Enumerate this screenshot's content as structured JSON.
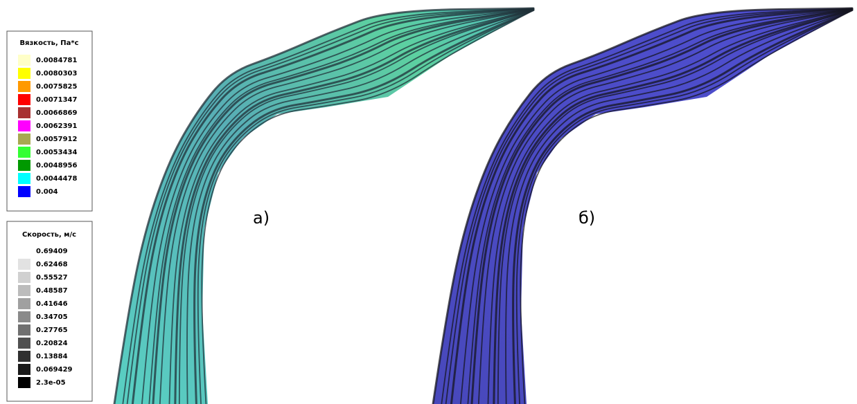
{
  "legend_viscosity": {
    "title": "Вязкость, Па*с",
    "items": [
      {
        "label": "0.0084781",
        "color": "#ffffc8"
      },
      {
        "label": "0.0080303",
        "color": "#ffff00"
      },
      {
        "label": "0.0075825",
        "color": "#ff9900"
      },
      {
        "label": "0.0071347",
        "color": "#ff0000"
      },
      {
        "label": "0.0066869",
        "color": "#a83232"
      },
      {
        "label": "0.0062391",
        "color": "#ff00ff"
      },
      {
        "label": "0.0057912",
        "color": "#a8a850"
      },
      {
        "label": "0.0053434",
        "color": "#33ff33"
      },
      {
        "label": "0.0048956",
        "color": "#009900"
      },
      {
        "label": "0.0044478",
        "color": "#00ffff"
      },
      {
        "label": "0.004",
        "color": "#0000ff"
      }
    ]
  },
  "legend_velocity": {
    "title": "Скорость, м/с",
    "items": [
      {
        "label": "0.69409",
        "color": "#ffffff"
      },
      {
        "label": "0.62468",
        "color": "#e2e2e2"
      },
      {
        "label": "0.55527",
        "color": "#d0d0d0"
      },
      {
        "label": "0.48587",
        "color": "#bcbcbc"
      },
      {
        "label": "0.41646",
        "color": "#a0a0a0"
      },
      {
        "label": "0.34705",
        "color": "#8a8a8a"
      },
      {
        "label": "0.27765",
        "color": "#707070"
      },
      {
        "label": "0.20824",
        "color": "#505050"
      },
      {
        "label": "0.13884",
        "color": "#303030"
      },
      {
        "label": "0.069429",
        "color": "#1a1a1a"
      },
      {
        "label": "2.3e-05",
        "color": "#000000"
      }
    ]
  },
  "panels": [
    {
      "label": "а)"
    },
    {
      "label": "б)"
    }
  ]
}
